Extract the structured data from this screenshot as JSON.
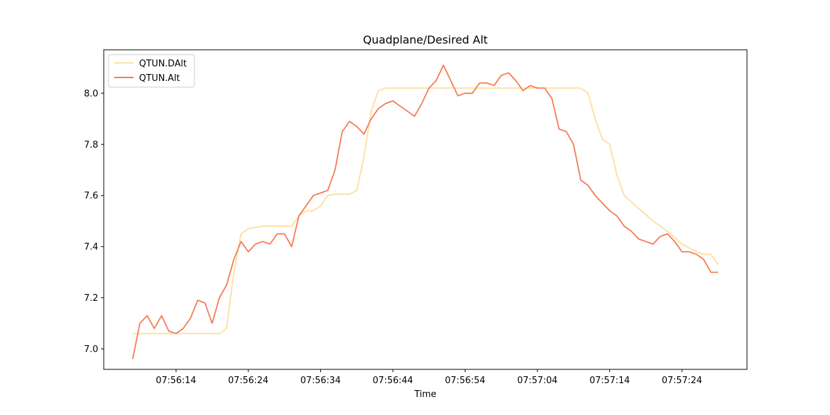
{
  "chart_data": {
    "type": "line",
    "title": "Quadplane/Desired Alt",
    "xlabel": "Time",
    "ylabel": "",
    "x_unit": "seconds since 07:56:00",
    "xlim": [
      "07:56:04",
      "07:57:33"
    ],
    "ylim": [
      6.92,
      8.17
    ],
    "grid": false,
    "legend_position": "upper-left",
    "x_ticks": [
      {
        "t": 14,
        "label": "07:56:14"
      },
      {
        "t": 24,
        "label": "07:56:24"
      },
      {
        "t": 34,
        "label": "07:56:34"
      },
      {
        "t": 44,
        "label": "07:56:44"
      },
      {
        "t": 54,
        "label": "07:56:54"
      },
      {
        "t": 64,
        "label": "07:57:04"
      },
      {
        "t": 74,
        "label": "07:57:14"
      },
      {
        "t": 84,
        "label": "07:57:24"
      }
    ],
    "y_ticks": [
      {
        "v": 7.0,
        "label": "7.0"
      },
      {
        "v": 7.2,
        "label": "7.2"
      },
      {
        "v": 7.4,
        "label": "7.4"
      },
      {
        "v": 7.6,
        "label": "7.6"
      },
      {
        "v": 7.8,
        "label": "7.8"
      },
      {
        "v": 8.0,
        "label": "8.0"
      }
    ],
    "series": [
      {
        "name": "QTUN.DAlt",
        "color": "#fee0a6",
        "x": [
          "07:56:08",
          "07:56:12",
          "07:56:16",
          "07:56:20",
          "07:56:21",
          "07:56:22",
          "07:56:23",
          "07:56:24",
          "07:56:26",
          "07:56:28",
          "07:56:30",
          "07:56:31",
          "07:56:32",
          "07:56:33",
          "07:56:34",
          "07:56:35",
          "07:56:36",
          "07:56:38",
          "07:56:39",
          "07:56:40",
          "07:56:41",
          "07:56:42",
          "07:56:43",
          "07:56:44",
          "07:56:54",
          "07:57:04",
          "07:57:09",
          "07:57:10",
          "07:57:11",
          "07:57:12",
          "07:57:13",
          "07:57:14",
          "07:57:15",
          "07:57:16",
          "07:57:18",
          "07:57:20",
          "07:57:22",
          "07:57:24",
          "07:57:26",
          "07:57:27",
          "07:57:28",
          "07:57:29"
        ],
        "y": [
          7.06,
          7.06,
          7.06,
          7.06,
          7.08,
          7.3,
          7.45,
          7.47,
          7.48,
          7.48,
          7.48,
          7.52,
          7.54,
          7.54,
          7.56,
          7.6,
          7.605,
          7.605,
          7.62,
          7.75,
          7.93,
          8.01,
          8.02,
          8.02,
          8.02,
          8.02,
          8.02,
          8.02,
          8.0,
          7.9,
          7.82,
          7.8,
          7.68,
          7.6,
          7.55,
          7.5,
          7.46,
          7.41,
          7.38,
          7.37,
          7.37,
          7.33
        ]
      },
      {
        "name": "QTUN.Alt",
        "color": "#f47b52",
        "x": [
          "07:56:08",
          "07:56:09",
          "07:56:10",
          "07:56:11",
          "07:56:12",
          "07:56:13",
          "07:56:14",
          "07:56:15",
          "07:56:16",
          "07:56:17",
          "07:56:18",
          "07:56:19",
          "07:56:20",
          "07:56:21",
          "07:56:22",
          "07:56:23",
          "07:56:24",
          "07:56:25",
          "07:56:26",
          "07:56:27",
          "07:56:28",
          "07:56:29",
          "07:56:30",
          "07:56:31",
          "07:56:32",
          "07:56:33",
          "07:56:34",
          "07:56:35",
          "07:56:36",
          "07:56:37",
          "07:56:38",
          "07:56:39",
          "07:56:40",
          "07:56:41",
          "07:56:42",
          "07:56:43",
          "07:56:44",
          "07:56:45",
          "07:56:46",
          "07:56:47",
          "07:56:48",
          "07:56:49",
          "07:56:50",
          "07:56:51",
          "07:56:52",
          "07:56:53",
          "07:56:54",
          "07:56:55",
          "07:56:56",
          "07:56:57",
          "07:56:58",
          "07:56:59",
          "07:57:00",
          "07:57:01",
          "07:57:02",
          "07:57:03",
          "07:57:04",
          "07:57:05",
          "07:57:06",
          "07:57:07",
          "07:57:08",
          "07:57:09",
          "07:57:10",
          "07:57:11",
          "07:57:12",
          "07:57:13",
          "07:57:14",
          "07:57:15",
          "07:57:16",
          "07:57:17",
          "07:57:18",
          "07:57:19",
          "07:57:20",
          "07:57:21",
          "07:57:22",
          "07:57:23",
          "07:57:24",
          "07:57:25",
          "07:57:26",
          "07:57:27",
          "07:57:28",
          "07:57:29"
        ],
        "y": [
          6.96,
          7.1,
          7.13,
          7.08,
          7.13,
          7.07,
          7.06,
          7.08,
          7.12,
          7.19,
          7.18,
          7.1,
          7.2,
          7.25,
          7.35,
          7.42,
          7.38,
          7.41,
          7.42,
          7.41,
          7.45,
          7.45,
          7.4,
          7.52,
          7.56,
          7.6,
          7.61,
          7.62,
          7.7,
          7.85,
          7.89,
          7.87,
          7.84,
          7.9,
          7.94,
          7.96,
          7.97,
          7.95,
          7.93,
          7.91,
          7.96,
          8.02,
          8.05,
          8.11,
          8.05,
          7.99,
          8.0,
          8.0,
          8.04,
          8.04,
          8.03,
          8.07,
          8.08,
          8.05,
          8.01,
          8.03,
          8.02,
          8.02,
          7.98,
          7.86,
          7.85,
          7.8,
          7.66,
          7.64,
          7.6,
          7.57,
          7.54,
          7.52,
          7.48,
          7.46,
          7.43,
          7.42,
          7.41,
          7.44,
          7.45,
          7.42,
          7.38,
          7.38,
          7.37,
          7.35,
          7.3,
          7.3
        ]
      }
    ]
  }
}
